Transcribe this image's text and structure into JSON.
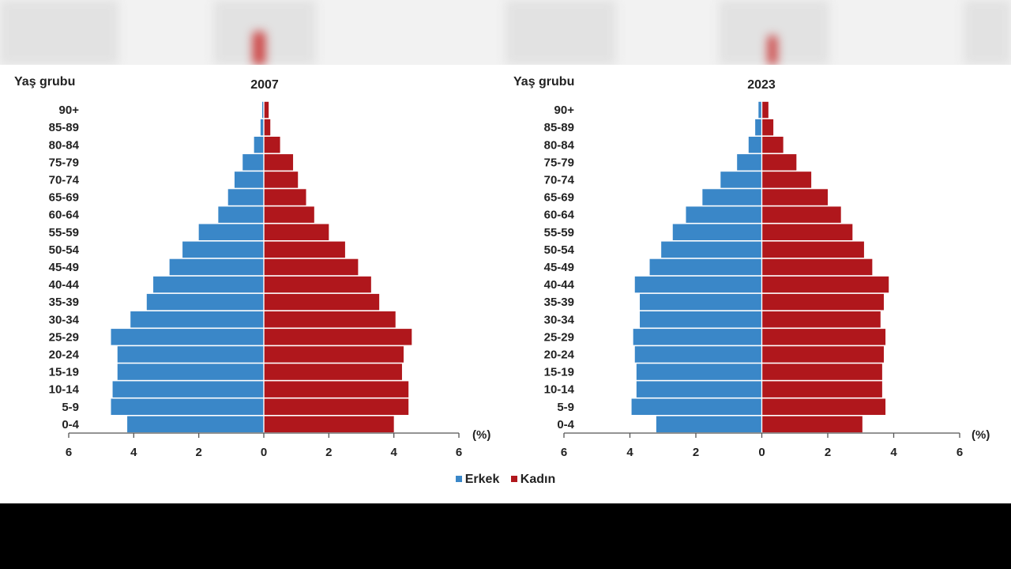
{
  "colors": {
    "male": "#3a87c8",
    "female": "#b0171c",
    "axis": "#555555",
    "text": "#222222"
  },
  "legend": {
    "male": "Erkek",
    "female": "Kadın"
  },
  "chart_data": [
    {
      "type": "bar",
      "orientation": "horizontal",
      "title": "2007",
      "ylabel": "Yaş grubu",
      "xlabel": "(%)",
      "xlim": [
        -6,
        6
      ],
      "xtick_labels": [
        "6",
        "4",
        "2",
        "0",
        "2",
        "4",
        "6"
      ],
      "categories": [
        "90+",
        "85-89",
        "80-84",
        "75-79",
        "70-74",
        "65-69",
        "60-64",
        "55-59",
        "50-54",
        "45-49",
        "40-44",
        "35-39",
        "30-34",
        "25-29",
        "20-24",
        "15-19",
        "10-14",
        "5-9",
        "0-4"
      ],
      "series": [
        {
          "name": "Erkek",
          "values": [
            0.05,
            0.1,
            0.3,
            0.65,
            0.9,
            1.1,
            1.4,
            2.0,
            2.5,
            2.9,
            3.4,
            3.6,
            4.1,
            4.7,
            4.5,
            4.5,
            4.65,
            4.7,
            4.2
          ]
        },
        {
          "name": "Kadın",
          "values": [
            0.15,
            0.2,
            0.5,
            0.9,
            1.05,
            1.3,
            1.55,
            2.0,
            2.5,
            2.9,
            3.3,
            3.55,
            4.05,
            4.55,
            4.3,
            4.25,
            4.45,
            4.45,
            4.0
          ]
        }
      ]
    },
    {
      "type": "bar",
      "orientation": "horizontal",
      "title": "2023",
      "ylabel": "Yaş grubu",
      "xlabel": "(%)",
      "xlim": [
        -6,
        6
      ],
      "xtick_labels": [
        "6",
        "4",
        "2",
        "0",
        "2",
        "4",
        "6"
      ],
      "categories": [
        "90+",
        "85-89",
        "80-84",
        "75-79",
        "70-74",
        "65-69",
        "60-64",
        "55-59",
        "50-54",
        "45-49",
        "40-44",
        "35-39",
        "30-34",
        "25-29",
        "20-24",
        "15-19",
        "10-14",
        "5-9",
        "0-4"
      ],
      "series": [
        {
          "name": "Erkek",
          "values": [
            0.1,
            0.2,
            0.4,
            0.75,
            1.25,
            1.8,
            2.3,
            2.7,
            3.05,
            3.4,
            3.85,
            3.7,
            3.7,
            3.9,
            3.85,
            3.8,
            3.8,
            3.95,
            3.2
          ]
        },
        {
          "name": "Kadın",
          "values": [
            0.2,
            0.35,
            0.65,
            1.05,
            1.5,
            2.0,
            2.4,
            2.75,
            3.1,
            3.35,
            3.85,
            3.7,
            3.6,
            3.75,
            3.7,
            3.65,
            3.65,
            3.75,
            3.05
          ]
        }
      ]
    }
  ]
}
